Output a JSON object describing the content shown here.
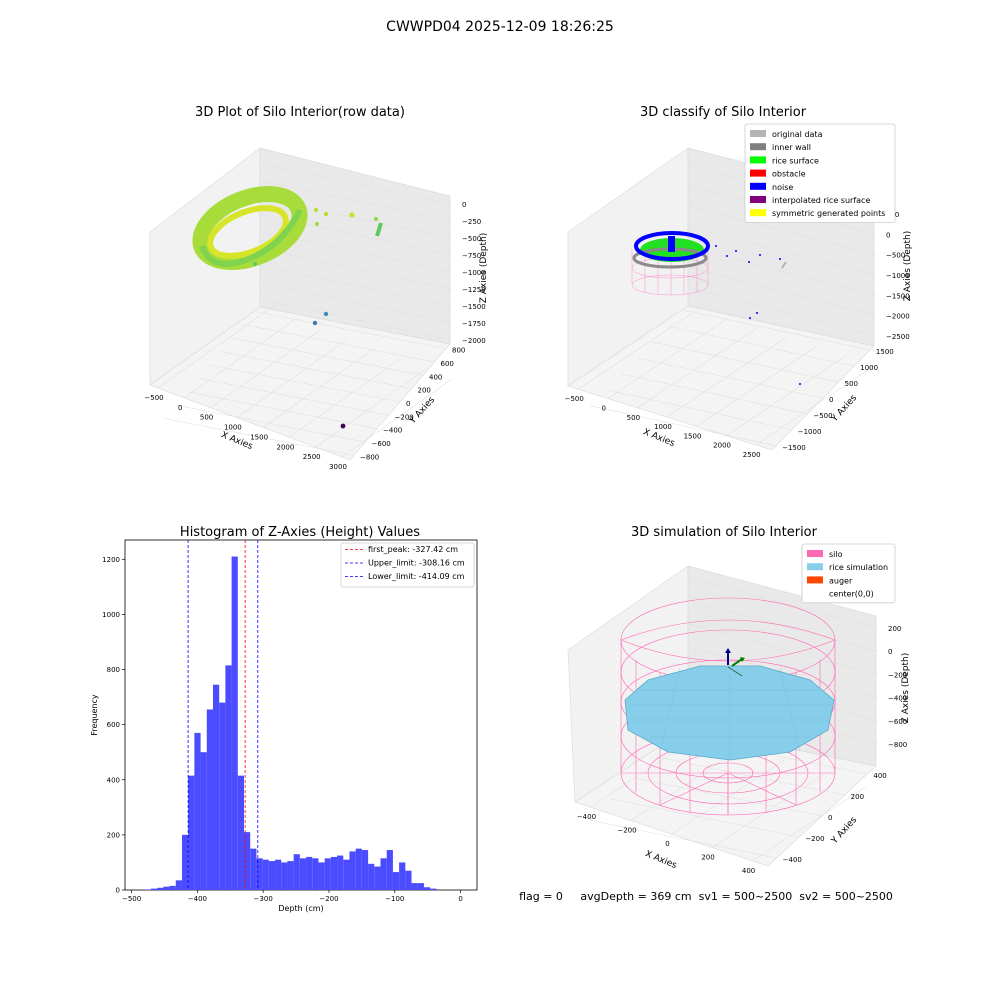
{
  "figure": {
    "suptitle": "CWWPD04 2025-12-09 18:26:25",
    "status_text": "flag = 0     avgDepth = 369 cm  sv1 = 500~2500  sv2 = 500~2500"
  },
  "chart_data": [
    {
      "type": "scatter",
      "projection": "3d",
      "title": "3D Plot of Silo Interior(row data)",
      "xlabel": "X Axies",
      "ylabel": "Y Axies",
      "zlabel": "Z Axies (Depth)",
      "xticks": [
        "−500",
        "0",
        "500",
        "1000",
        "1500",
        "2000",
        "2500",
        "3000"
      ],
      "yticks": [
        "−800",
        "−600",
        "−400",
        "−200",
        "0",
        "200",
        "400",
        "600",
        "800"
      ],
      "zticks": [
        "−2000",
        "−1750",
        "−1500",
        "−1250",
        "−1000",
        "−750",
        "−500",
        "−250",
        "0"
      ],
      "xlim": [
        -600,
        3000
      ],
      "ylim": [
        -800,
        800
      ],
      "zlim": [
        -2000,
        0
      ],
      "grid": true,
      "colormap": "viridis",
      "points": [
        {
          "x": 1400,
          "y": 500,
          "z": -100
        },
        {
          "x": 1600,
          "y": 550,
          "z": -150
        },
        {
          "x": 2300,
          "y": 600,
          "z": -200
        },
        {
          "x": 2400,
          "y": 620,
          "z": -300
        },
        {
          "x": 1200,
          "y": -100,
          "z": -1500
        },
        {
          "x": 1300,
          "y": 0,
          "z": -1700
        },
        {
          "x": 2900,
          "y": -700,
          "z": -2000
        }
      ]
    },
    {
      "type": "scatter",
      "projection": "3d",
      "title": "3D classify of Silo Interior",
      "xlabel": "X Axies",
      "ylabel": "Y Axies",
      "zlabel": "Z Axies (Depth)",
      "xticks": [
        "−500",
        "0",
        "500",
        "1000",
        "1500",
        "2000",
        "2500"
      ],
      "yticks": [
        "−1500",
        "−1000",
        "−500",
        "0",
        "500",
        "1000",
        "1500"
      ],
      "zticks": [
        "−2500",
        "−2000",
        "−1500",
        "−1000",
        "−500",
        "0",
        "500"
      ],
      "xlim": [
        -600,
        2700
      ],
      "ylim": [
        -1500,
        1500
      ],
      "zlim": [
        -2500,
        500
      ],
      "grid": true,
      "legend_position": "top-right",
      "legend": [
        {
          "label": "original data",
          "color": "#b4b4b4"
        },
        {
          "label": "inner wall",
          "color": "#808080"
        },
        {
          "label": "rice surface",
          "color": "#00ff00"
        },
        {
          "label": "obstacle",
          "color": "#ff0000"
        },
        {
          "label": "noise",
          "color": "#0000ff"
        },
        {
          "label": "interpolated rice surface",
          "color": "#800080"
        },
        {
          "label": "symmetric generated points",
          "color": "#ffff00"
        }
      ]
    },
    {
      "type": "histogram",
      "title": "Histogram of Z-Axies (Height) Values",
      "xlabel": "Depth (cm)",
      "ylabel": "Frequency",
      "xlim": [
        -510,
        25
      ],
      "ylim": [
        0,
        1270
      ],
      "xticks": [
        {
          "v": -500,
          "label": "−500"
        },
        {
          "v": -400,
          "label": "−400"
        },
        {
          "v": -300,
          "label": "−300"
        },
        {
          "v": -200,
          "label": "−200"
        },
        {
          "v": -100,
          "label": "−100"
        },
        {
          "v": 0,
          "label": "0"
        }
      ],
      "yticks": [
        {
          "v": 0,
          "label": "0"
        },
        {
          "v": 200,
          "label": "200"
        },
        {
          "v": 400,
          "label": "400"
        },
        {
          "v": 600,
          "label": "600"
        },
        {
          "v": 800,
          "label": "800"
        },
        {
          "v": 1000,
          "label": "1000"
        },
        {
          "v": 1200,
          "label": "1200"
        }
      ],
      "bar_color": "#4b4bff",
      "bin_start": -480,
      "bin_width": 9.43,
      "counts": [
        2,
        5,
        8,
        12,
        15,
        35,
        200,
        415,
        570,
        500,
        655,
        745,
        680,
        815,
        1210,
        415,
        210,
        150,
        115,
        110,
        105,
        110,
        100,
        105,
        130,
        115,
        120,
        115,
        100,
        115,
        120,
        125,
        110,
        140,
        150,
        145,
        95,
        85,
        115,
        145,
        65,
        100,
        70,
        25,
        25,
        10,
        5
      ],
      "lines": [
        {
          "label": "first_peak: -327.42 cm",
          "x": -327.42,
          "color": "#ff0000"
        },
        {
          "label": "Upper_limit: -308.16 cm",
          "x": -308.16,
          "color": "#0000ff"
        },
        {
          "label": "Lower_limit: -414.09 cm",
          "x": -414.09,
          "color": "#0000ff"
        }
      ],
      "legend_position": "top-right"
    },
    {
      "type": "surface",
      "projection": "3d",
      "title": "3D simulation of Silo Interior",
      "xlabel": "X Axies",
      "ylabel": "Y Axies",
      "zlabel": "Z Axies (Depth)",
      "xticks": [
        "−400",
        "−200",
        "0",
        "200",
        "400"
      ],
      "yticks": [
        "−400",
        "−200",
        "0",
        "200",
        "400"
      ],
      "zticks": [
        "−800",
        "−600",
        "−400",
        "−200",
        "0",
        "200"
      ],
      "xlim": [
        -500,
        500
      ],
      "ylim": [
        -500,
        500
      ],
      "zlim": [
        -900,
        300
      ],
      "grid": true,
      "legend_position": "top-right",
      "legend": [
        {
          "label": "silo",
          "color": "#ff69b4"
        },
        {
          "label": "rice simulation",
          "color": "#87ceeb"
        },
        {
          "label": "auger",
          "color": "#ff4500"
        },
        {
          "label": "center(0,0)",
          "color": "#ffffff"
        }
      ]
    }
  ]
}
